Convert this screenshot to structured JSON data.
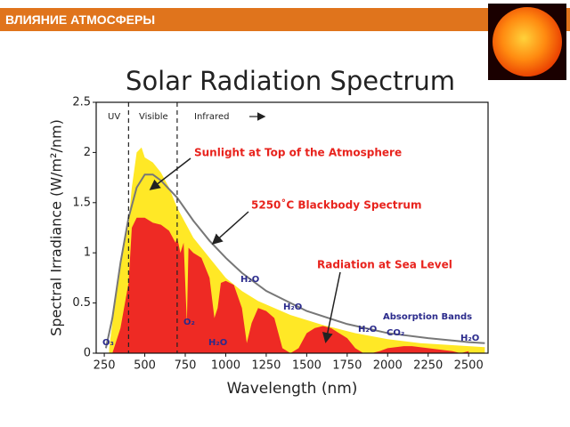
{
  "header": {
    "title": "ВЛИЯНИЕ АТМОСФЕРЫ"
  },
  "chart_data": {
    "type": "area",
    "title": "Solar Radiation Spectrum",
    "x_label": "Wavelength (nm)",
    "y_label": "Spectral Irradiance (W/m²/nm)",
    "xlim": [
      200,
      2620
    ],
    "ylim": [
      0,
      2.5
    ],
    "xticks": [
      250,
      500,
      750,
      1000,
      1250,
      1500,
      1750,
      2000,
      2250,
      2500
    ],
    "yticks": [
      0,
      0.5,
      1,
      1.5,
      2,
      2.5
    ],
    "region_boundaries": [
      400,
      700
    ],
    "regions": [
      "UV",
      "Visible",
      "Infrared"
    ],
    "annotations": [
      "Sunlight at Top of the Atmosphere",
      "5250˚C Blackbody Spectrum",
      "Radiation at Sea Level",
      "Absorption Bands"
    ],
    "absorption_labels": [
      "O₃",
      "O₂",
      "H₂O",
      "H₂O",
      "H₂O",
      "H₂O",
      "CO₂",
      "H₂O"
    ],
    "series": [
      {
        "name": "Sunlight at Top of the Atmosphere",
        "color": "#ffe826",
        "kind": "area",
        "x": [
          280,
          300,
          350,
          400,
          420,
          450,
          480,
          500,
          550,
          600,
          650,
          700,
          750,
          800,
          900,
          1000,
          1100,
          1200,
          1300,
          1400,
          1500,
          1600,
          1700,
          1800,
          1900,
          2000,
          2100,
          2200,
          2300,
          2400,
          2500,
          2600
        ],
        "values": [
          0.05,
          0.3,
          0.9,
          1.3,
          1.65,
          2.0,
          2.05,
          1.95,
          1.9,
          1.8,
          1.65,
          1.45,
          1.3,
          1.15,
          0.95,
          0.75,
          0.62,
          0.52,
          0.45,
          0.38,
          0.33,
          0.28,
          0.24,
          0.2,
          0.17,
          0.14,
          0.12,
          0.1,
          0.09,
          0.08,
          0.07,
          0.06
        ]
      },
      {
        "name": "Radiation at Sea Level",
        "color": "#ee2a24",
        "kind": "area",
        "x": [
          300,
          350,
          400,
          420,
          450,
          500,
          550,
          600,
          650,
          690,
          700,
          720,
          740,
          760,
          770,
          800,
          850,
          900,
          930,
          950,
          970,
          1000,
          1050,
          1100,
          1130,
          1160,
          1200,
          1250,
          1300,
          1350,
          1400,
          1450,
          1500,
          1550,
          1600,
          1650,
          1700,
          1750,
          1800,
          1850,
          1900,
          1950,
          2000,
          2050,
          2100,
          2150,
          2200,
          2250,
          2300,
          2350,
          2400,
          2450,
          2500
        ],
        "values": [
          0,
          0.25,
          0.7,
          1.25,
          1.35,
          1.35,
          1.3,
          1.28,
          1.22,
          1.1,
          1.15,
          1.0,
          1.1,
          0.3,
          1.05,
          1.0,
          0.95,
          0.75,
          0.35,
          0.45,
          0.7,
          0.72,
          0.68,
          0.45,
          0.1,
          0.3,
          0.45,
          0.42,
          0.35,
          0.05,
          0,
          0.05,
          0.2,
          0.25,
          0.27,
          0.25,
          0.2,
          0.15,
          0.05,
          0,
          0,
          0.02,
          0.05,
          0.06,
          0.07,
          0.07,
          0.06,
          0.05,
          0.04,
          0.03,
          0.02,
          0,
          0.02
        ]
      },
      {
        "name": "5250˚C Blackbody Spectrum",
        "color": "#777777",
        "kind": "line",
        "x": [
          260,
          300,
          350,
          400,
          450,
          500,
          550,
          600,
          700,
          800,
          900,
          1000,
          1100,
          1250,
          1500,
          1750,
          2000,
          2250,
          2500,
          2600
        ],
        "values": [
          0.05,
          0.35,
          0.9,
          1.35,
          1.65,
          1.78,
          1.78,
          1.72,
          1.55,
          1.32,
          1.12,
          0.95,
          0.8,
          0.62,
          0.42,
          0.29,
          0.2,
          0.15,
          0.11,
          0.1
        ]
      }
    ]
  }
}
